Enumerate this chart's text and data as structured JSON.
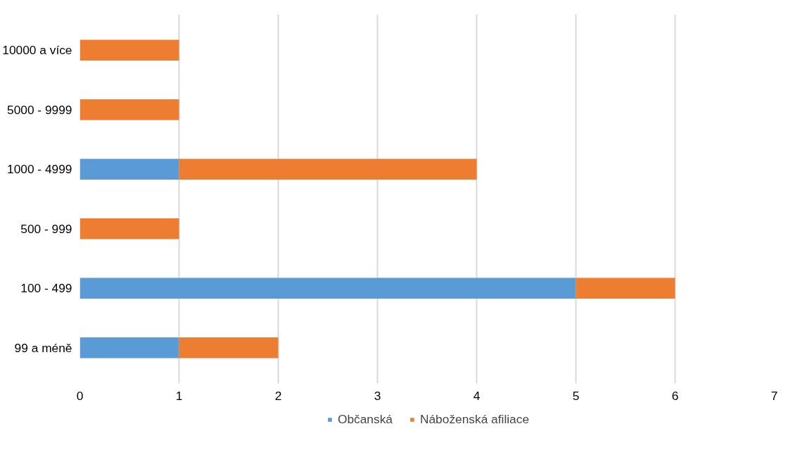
{
  "chart_data": {
    "type": "bar",
    "orientation": "horizontal",
    "stacked": true,
    "categories": [
      "10000 a více",
      "5000 - 9999",
      "1000 - 4999",
      "500 - 999",
      "100 - 499",
      "99 a méně"
    ],
    "series": [
      {
        "name": "Občanská",
        "color": "#5b9bd5",
        "values": [
          0,
          0,
          1,
          0,
          5,
          1
        ]
      },
      {
        "name": "Náboženská afiliace",
        "color": "#ed7d31",
        "values": [
          1,
          1,
          3,
          1,
          1,
          1
        ]
      }
    ],
    "xlim": [
      0,
      7
    ],
    "xticks": [
      0,
      1,
      2,
      3,
      4,
      5,
      6,
      7
    ],
    "grid": "x",
    "legend": "bottom"
  }
}
